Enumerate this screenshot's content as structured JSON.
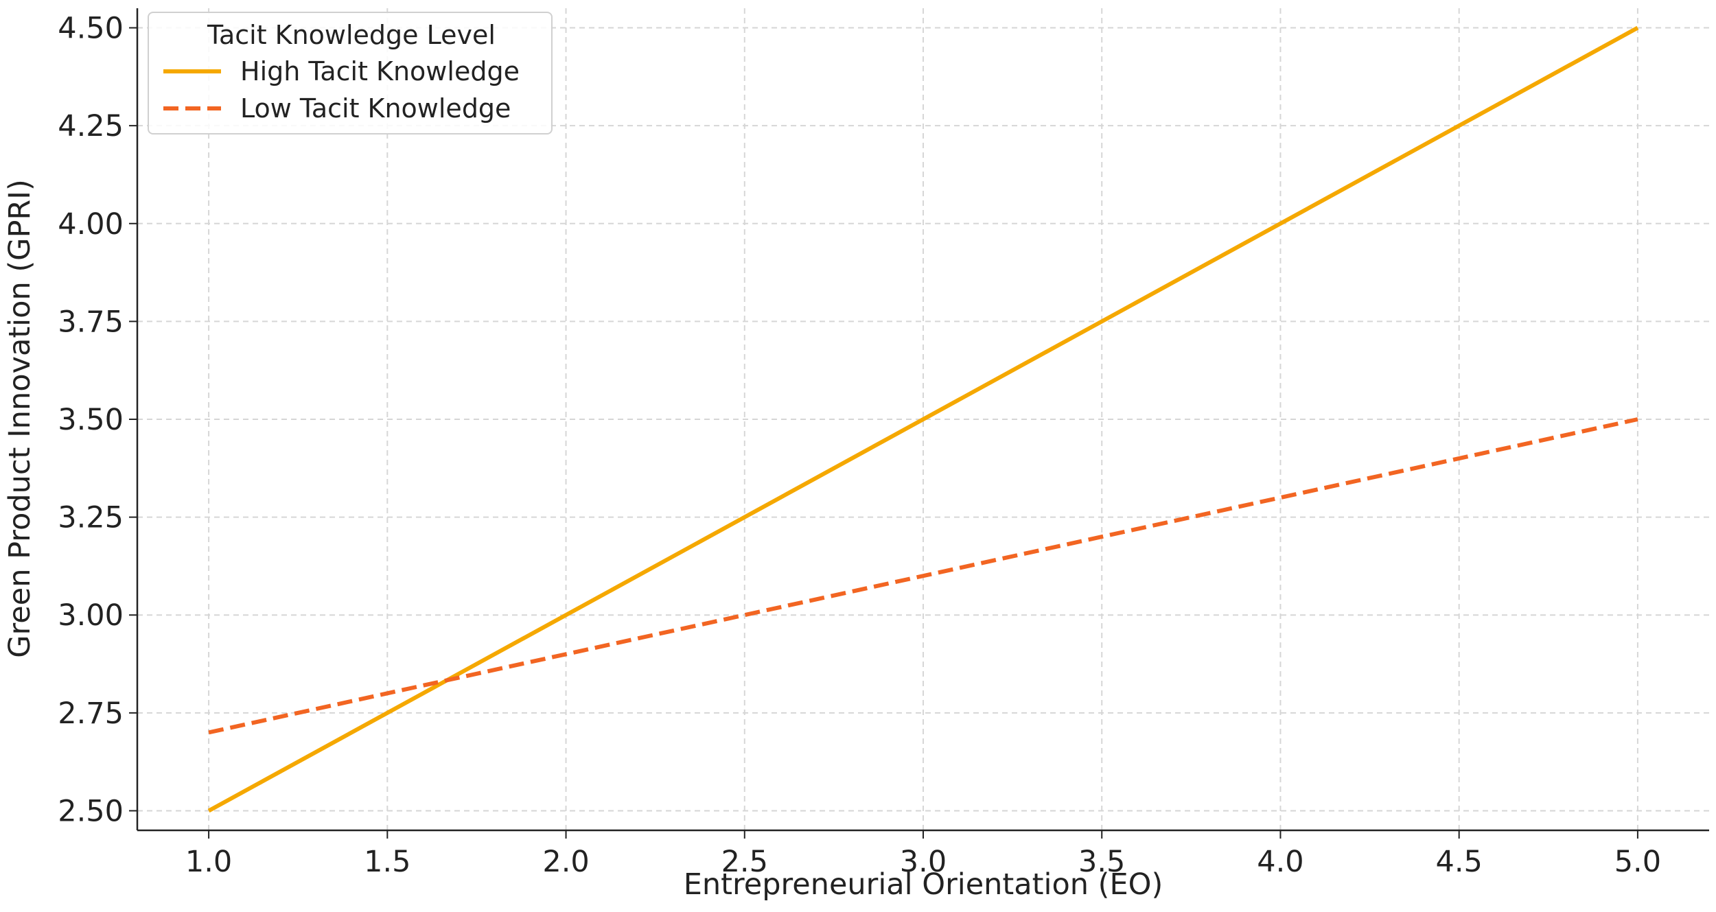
{
  "chart_data": {
    "type": "line",
    "title": "",
    "xlabel": "Entrepreneurial Orientation (EO)",
    "ylabel": "Green Product Innovation (GPRI)",
    "xlim": [
      0.8,
      5.2
    ],
    "ylim": [
      2.45,
      4.55
    ],
    "xticks": [
      "1.0",
      "1.5",
      "2.0",
      "2.5",
      "3.0",
      "3.5",
      "4.0",
      "4.5",
      "5.0"
    ],
    "yticks": [
      "2.50",
      "2.75",
      "3.00",
      "3.25",
      "3.50",
      "3.75",
      "4.00",
      "4.25",
      "4.50"
    ],
    "grid": true,
    "legend": {
      "title": "Tacit Knowledge Level",
      "placement": "top-left"
    },
    "series": [
      {
        "name": "High Tacit Knowledge",
        "x": [
          1.0,
          5.0
        ],
        "y": [
          2.5,
          4.5
        ],
        "color": "#f5a800",
        "style": "solid"
      },
      {
        "name": "Low Tacit Knowledge",
        "x": [
          1.0,
          5.0
        ],
        "y": [
          2.7,
          3.5
        ],
        "color": "#f26522",
        "style": "dashed"
      }
    ]
  }
}
